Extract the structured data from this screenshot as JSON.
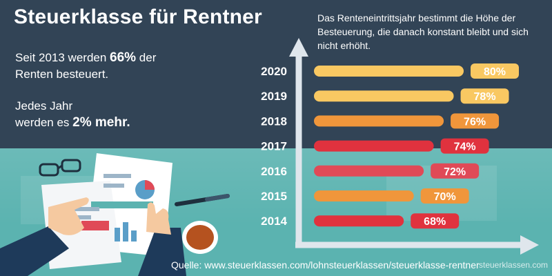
{
  "header": {
    "title": "Steuerklasse für Rentner"
  },
  "intro": {
    "line1_a": "Seit 2013 werden ",
    "line1_b": "66%",
    "line1_c": " der",
    "line2": "Renten besteuert.",
    "line3": "Jedes Jahr",
    "line4_a": "werden es ",
    "line4_b": "2% mehr."
  },
  "note": "Das Renteneintrittsjahr bestimmt die Höhe der Besteuerung, die danach konstant bleibt und sich nicht erhöht.",
  "footer": {
    "source": "Quelle: www.steuerklassen.com/lohnsteuerklassen/steuerklasse-rentner",
    "watermark": "steuerklassen.com"
  },
  "chart_data": {
    "type": "bar",
    "orientation": "horizontal",
    "categories": [
      "2020",
      "2019",
      "2018",
      "2017",
      "2016",
      "2015",
      "2014"
    ],
    "values": [
      80,
      78,
      76,
      74,
      72,
      70,
      68
    ],
    "labels": [
      "80%",
      "78%",
      "76%",
      "74%",
      "72%",
      "70%",
      "68%"
    ],
    "colors": [
      "#f9c862",
      "#f9c862",
      "#f0963b",
      "#e0323e",
      "#e04a57",
      "#f0963b",
      "#e0323e"
    ],
    "xlim": [
      50,
      82
    ]
  }
}
